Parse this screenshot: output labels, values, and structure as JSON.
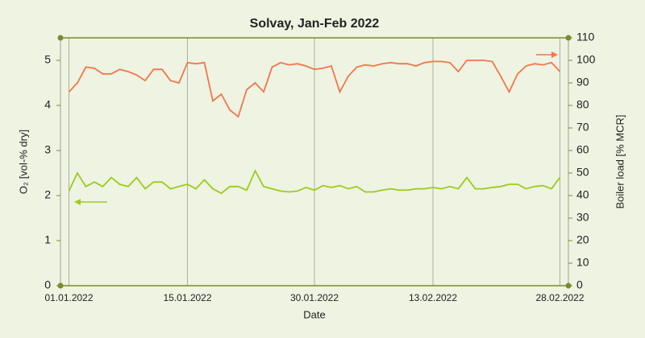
{
  "chart_data": {
    "type": "line",
    "title": "Solvay, Jan-Feb 2022",
    "xlabel": "Date",
    "ylabel": "O₂ [vol-% dry]",
    "y2label": "Boiler load [% MCR]",
    "x": [
      "2022-01-01",
      "2022-01-02",
      "2022-01-03",
      "2022-01-04",
      "2022-01-05",
      "2022-01-06",
      "2022-01-07",
      "2022-01-08",
      "2022-01-09",
      "2022-01-10",
      "2022-01-11",
      "2022-01-12",
      "2022-01-13",
      "2022-01-14",
      "2022-01-15",
      "2022-01-16",
      "2022-01-17",
      "2022-01-18",
      "2022-01-19",
      "2022-01-20",
      "2022-01-21",
      "2022-01-22",
      "2022-01-23",
      "2022-01-24",
      "2022-01-25",
      "2022-01-26",
      "2022-01-27",
      "2022-01-28",
      "2022-01-29",
      "2022-01-30",
      "2022-01-31",
      "2022-02-01",
      "2022-02-02",
      "2022-02-03",
      "2022-02-04",
      "2022-02-05",
      "2022-02-06",
      "2022-02-07",
      "2022-02-08",
      "2022-02-09",
      "2022-02-10",
      "2022-02-11",
      "2022-02-12",
      "2022-02-13",
      "2022-02-14",
      "2022-02-15",
      "2022-02-16",
      "2022-02-17",
      "2022-02-18",
      "2022-02-19",
      "2022-02-20",
      "2022-02-21",
      "2022-02-22",
      "2022-02-23",
      "2022-02-24",
      "2022-02-25",
      "2022-02-26",
      "2022-02-27",
      "2022-02-28"
    ],
    "series": [
      {
        "color": "#9ccc1c",
        "axis": "y",
        "values": [
          2.1,
          2.5,
          2.2,
          2.3,
          2.2,
          2.4,
          2.25,
          2.2,
          2.4,
          2.15,
          2.3,
          2.3,
          2.15,
          2.2,
          2.25,
          2.15,
          2.35,
          2.15,
          2.05,
          2.2,
          2.2,
          2.12,
          2.55,
          2.2,
          2.15,
          2.1,
          2.08,
          2.1,
          2.18,
          2.12,
          2.22,
          2.18,
          2.22,
          2.15,
          2.2,
          2.08,
          2.08,
          2.12,
          2.15,
          2.12,
          2.12,
          2.15,
          2.15,
          2.18,
          2.15,
          2.2,
          2.15,
          2.4,
          2.15,
          2.15,
          2.18,
          2.2,
          2.25,
          2.25,
          2.15,
          2.2,
          2.22,
          2.15,
          2.4
        ]
      },
      {
        "color": "#f0784a",
        "axis": "y2",
        "values": [
          86,
          90,
          97,
          96.5,
          94,
          94,
          96,
          95,
          93.5,
          91,
          96,
          96,
          91,
          90,
          99,
          98.5,
          99,
          82,
          85,
          78,
          75,
          87,
          90,
          86,
          97,
          99,
          98,
          98.5,
          97.5,
          96,
          96.5,
          97.5,
          86,
          93,
          97,
          98,
          97.5,
          98.5,
          99,
          98.5,
          98.5,
          97.5,
          99,
          99.5,
          99.5,
          99,
          95,
          100,
          100,
          100,
          99.5,
          93,
          86,
          94,
          97.5,
          98.5,
          98,
          99,
          95
        ]
      }
    ],
    "xlim": [
      "2021-12-31",
      "2022-03-01"
    ],
    "xticks": [
      {
        "value": "2022-01-01",
        "label": "01.01.2022"
      },
      {
        "value": "2022-01-15",
        "label": "15.01.2022"
      },
      {
        "value": "2022-01-30",
        "label": "30.01.2022"
      },
      {
        "value": "2022-02-13",
        "label": "13.02.2022"
      },
      {
        "value": "2022-02-28",
        "label": "28.02.2022"
      }
    ],
    "ylim": [
      0,
      5.5
    ],
    "yticks": [
      0,
      1,
      2,
      3,
      4,
      5
    ],
    "y2lim": [
      0,
      110
    ],
    "y2ticks": [
      0,
      10,
      20,
      30,
      40,
      50,
      60,
      70,
      80,
      90,
      100,
      110
    ],
    "grid": true
  }
}
